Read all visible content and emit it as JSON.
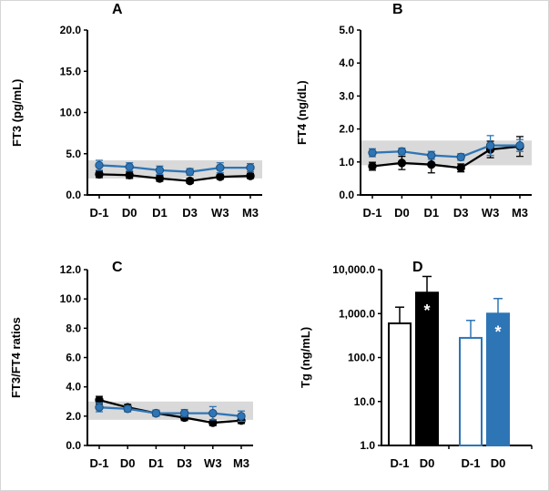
{
  "figure": {
    "colors": {
      "blue": "#2E75B6",
      "blue_edge": "#1F4E79",
      "black": "#000000",
      "reference_band": "#D9D9D9",
      "axis": "#000000",
      "background": "#FFFFFF"
    }
  },
  "chart_data": [
    {
      "panel_label": "A",
      "type": "line",
      "ylabel": "FT3 (pg/mL)",
      "categories": [
        "D-1",
        "D0",
        "D1",
        "D3",
        "W3",
        "M3"
      ],
      "ylim": [
        0.0,
        20.0
      ],
      "yticks": [
        0,
        5,
        10,
        15,
        20
      ],
      "ytick_labels": [
        "0.0",
        "5.0",
        "10.0",
        "15.0",
        "20.0"
      ],
      "reference_band": [
        2.0,
        4.2
      ],
      "grid": false,
      "legend": "none",
      "series": [
        {
          "name": "black-group",
          "color": "#000000",
          "edge": "#000000",
          "marker": "circle",
          "values": [
            2.5,
            2.4,
            2.0,
            1.7,
            2.2,
            2.3
          ],
          "errors": [
            0.4,
            0.4,
            0.35,
            0.3,
            0.3,
            0.3
          ]
        },
        {
          "name": "blue-group",
          "color": "#2E75B6",
          "edge": "#1F4E79",
          "marker": "circle",
          "values": [
            3.6,
            3.4,
            3.0,
            2.8,
            3.3,
            3.3
          ],
          "errors": [
            0.6,
            0.5,
            0.5,
            0.4,
            0.6,
            0.5
          ]
        }
      ]
    },
    {
      "panel_label": "B",
      "type": "line",
      "ylabel": "FT4 (ng/dL)",
      "categories": [
        "D-1",
        "D0",
        "D1",
        "D3",
        "W3",
        "M3"
      ],
      "ylim": [
        0.0,
        5.0
      ],
      "yticks": [
        0,
        1,
        2,
        3,
        4,
        5
      ],
      "ytick_labels": [
        "0.0",
        "1.0",
        "2.0",
        "3.0",
        "4.0",
        "5.0"
      ],
      "reference_band": [
        0.9,
        1.65
      ],
      "grid": false,
      "legend": "none",
      "series": [
        {
          "name": "black-group",
          "color": "#000000",
          "edge": "#000000",
          "marker": "circle",
          "values": [
            0.87,
            0.97,
            0.92,
            0.82,
            1.38,
            1.47
          ],
          "errors": [
            0.12,
            0.2,
            0.25,
            0.12,
            0.25,
            0.3
          ]
        },
        {
          "name": "blue-group",
          "color": "#2E75B6",
          "edge": "#1F4E79",
          "marker": "circle",
          "values": [
            1.28,
            1.32,
            1.2,
            1.15,
            1.5,
            1.5
          ],
          "errors": [
            0.12,
            0.1,
            0.12,
            0.1,
            0.3,
            0.18
          ]
        }
      ]
    },
    {
      "panel_label": "C",
      "type": "line",
      "ylabel": "FT3/FT4 ratios",
      "categories": [
        "D-1",
        "D0",
        "D1",
        "D3",
        "W3",
        "M3"
      ],
      "ylim": [
        0.0,
        12.0
      ],
      "yticks": [
        0,
        2,
        4,
        6,
        8,
        10,
        12
      ],
      "ytick_labels": [
        "0.0",
        "2.0",
        "4.0",
        "6.0",
        "8.0",
        "10.0",
        "12.0"
      ],
      "reference_band": [
        1.75,
        3.0
      ],
      "grid": false,
      "legend": "none",
      "series": [
        {
          "name": "black-group",
          "color": "#000000",
          "edge": "#000000",
          "marker": "circle",
          "values": [
            3.1,
            2.6,
            2.2,
            1.9,
            1.55,
            1.7
          ],
          "errors": [
            0.25,
            0.2,
            0.2,
            0.2,
            0.2,
            0.2
          ]
        },
        {
          "name": "blue-group",
          "color": "#2E75B6",
          "edge": "#1F4E79",
          "marker": "circle",
          "values": [
            2.6,
            2.5,
            2.2,
            2.2,
            2.2,
            2.0
          ],
          "errors": [
            0.3,
            0.2,
            0.2,
            0.25,
            0.45,
            0.35
          ]
        }
      ]
    },
    {
      "panel_label": "D",
      "type": "bar",
      "ylabel": "Tg (ng/mL)",
      "yscale": "log",
      "ylim": [
        1.0,
        10000.0
      ],
      "yticks": [
        1,
        10,
        100,
        1000,
        10000
      ],
      "ytick_labels": [
        "1.0",
        "10.0",
        "100.0",
        "1,000.0",
        "10,000.0"
      ],
      "grid": false,
      "legend": "none",
      "groups": [
        {
          "name": "black-group",
          "outline": "#000000",
          "bars": [
            {
              "label": "D-1",
              "fill": "#FFFFFF",
              "value": 600,
              "error_high": 1400,
              "annotation": ""
            },
            {
              "label": "D0",
              "fill": "#000000",
              "value": 3000,
              "error_high": 7000,
              "annotation": "*"
            }
          ]
        },
        {
          "name": "blue-group",
          "outline": "#2E75B6",
          "bars": [
            {
              "label": "D-1",
              "fill": "#FFFFFF",
              "value": 280,
              "error_high": 700,
              "annotation": ""
            },
            {
              "label": "D0",
              "fill": "#2E75B6",
              "value": 1000,
              "error_high": 2200,
              "annotation": "*"
            }
          ]
        }
      ]
    }
  ]
}
